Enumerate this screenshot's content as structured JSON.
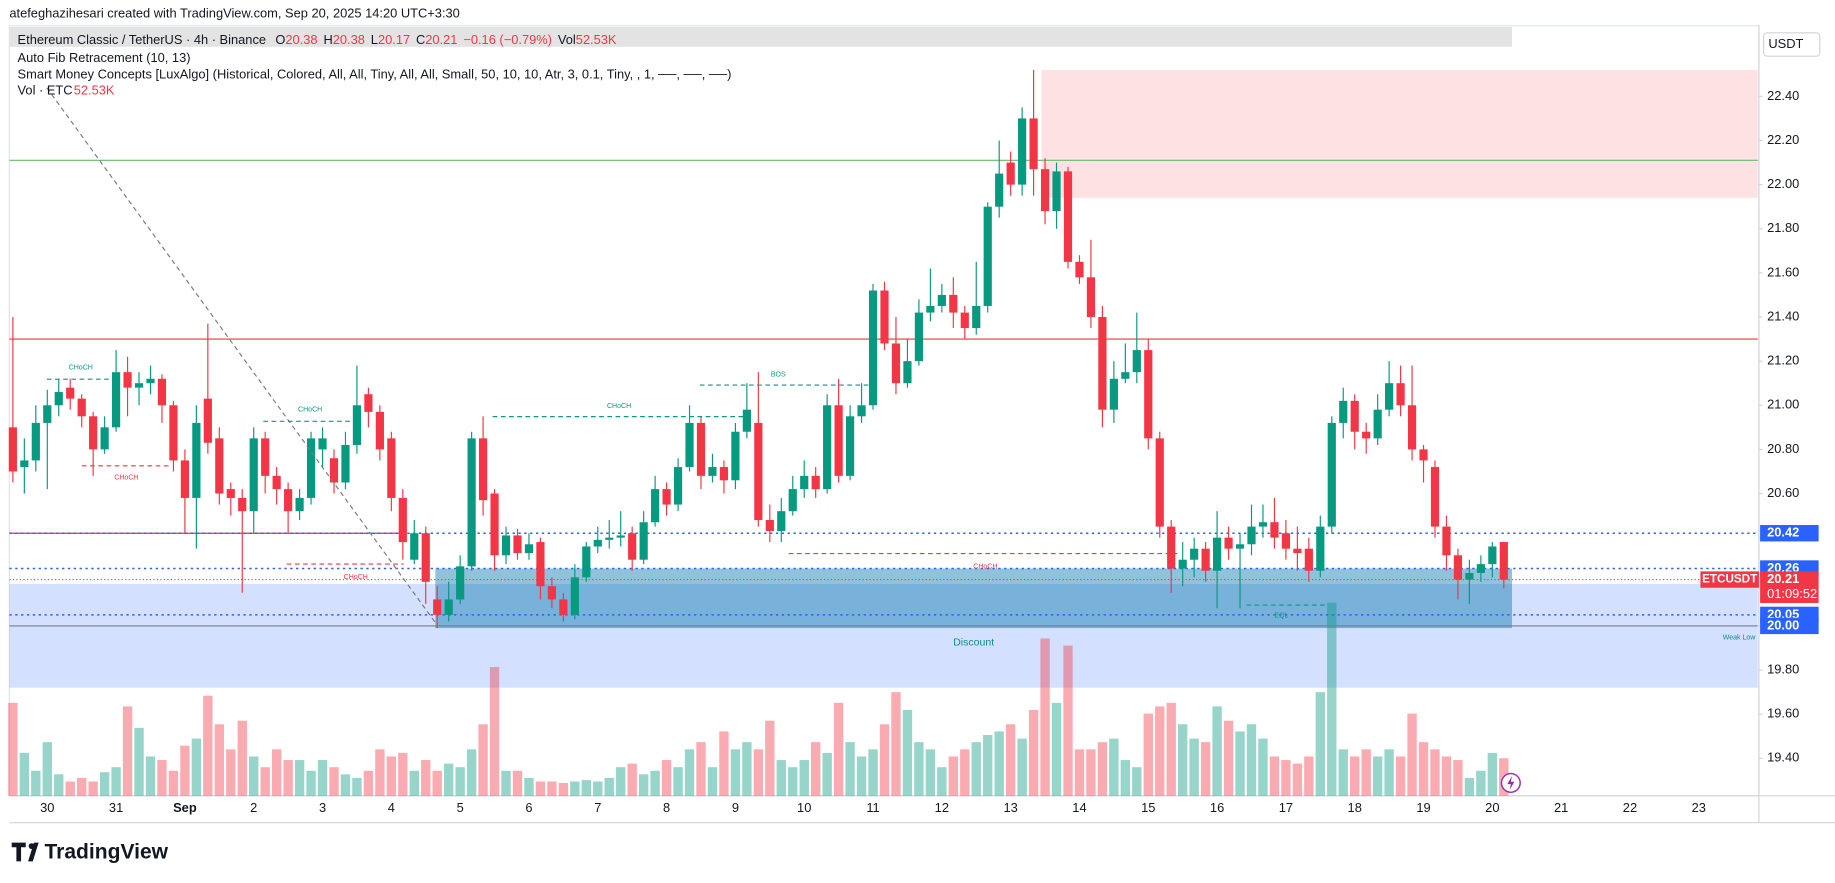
{
  "header": {
    "credit": "atefeghazihesari created with TradingView.com, Sep 20, 2025 14:20 UTC+3:30",
    "currency": "USDT",
    "brand": "TradingView"
  },
  "legend": {
    "symbol": "Ethereum Classic / TetherUS · 4h · Binance",
    "fields": [
      {
        "k": "O",
        "v": 20.38
      },
      {
        "k": "H",
        "v": 20.38
      },
      {
        "k": "L",
        "v": 20.17
      },
      {
        "k": "C",
        "v": 20.21
      }
    ],
    "change": "−0.16 (−0.79%)",
    "vol_key": "Vol",
    "vol": "52.53K",
    "indicators": [
      "Auto Fib Retracement (10, 13)",
      "Smart Money Concepts [LuxAlgo] (Historical, Colored, All, All, Tiny, All, All, Small, 50, 10, 10, Atr, 3, 0.1, Tiny, , 1, ──, ──, ──)"
    ],
    "vol_indicator": "Vol · ETC",
    "vol_indicator_value": "52.53K"
  },
  "chart_data": {
    "type": "candlestick",
    "up_color": "#089981",
    "down_color": "#f23645",
    "ylim": [
      19.23,
      22.72
    ],
    "yticks": [
      {
        "value": 22.4,
        "label": "22.40"
      },
      {
        "value": 22.2,
        "label": "22.20"
      },
      {
        "value": 22,
        "label": "22.00"
      },
      {
        "value": 21.8,
        "label": "21.80"
      },
      {
        "value": 21.6,
        "label": "21.60"
      },
      {
        "value": 21.4,
        "label": "21.40"
      },
      {
        "value": 21.2,
        "label": "21.20"
      },
      {
        "value": 21,
        "label": "21.00"
      },
      {
        "value": 20.8,
        "label": "20.80"
      },
      {
        "value": 20.6,
        "label": "20.60"
      },
      {
        "value": 20.4,
        "label": "20.40"
      },
      {
        "value": 20.2,
        "label": "20.20"
      },
      {
        "value": 20,
        "label": "20.00"
      },
      {
        "value": 19.8,
        "label": "19.80"
      },
      {
        "value": 19.6,
        "label": "19.60"
      },
      {
        "value": 19.4,
        "label": "19.40"
      }
    ],
    "xticks": [
      "30",
      "31",
      "Sep",
      "2",
      "3",
      "4",
      "5",
      "6",
      "7",
      "8",
      "9",
      "10",
      "11",
      "12",
      "13",
      "14",
      "15",
      "16",
      "17",
      "18",
      "19",
      "20",
      "21",
      "22",
      "23"
    ],
    "grid": false,
    "open": [
      20.9,
      20.72,
      20.75,
      20.92,
      21.0,
      21.08,
      21.03,
      20.95,
      20.8,
      20.9,
      21.15,
      21.08,
      21.1,
      21.12,
      21.0,
      20.75,
      20.58,
      21.03,
      20.85,
      20.62,
      20.58,
      20.52,
      20.85,
      20.68,
      20.62,
      20.52,
      20.58,
      20.8,
      20.76,
      20.65,
      20.82,
      21.05,
      20.97,
      20.85,
      20.58,
      20.3,
      20.42,
      20.12,
      20.05,
      20.12,
      20.27,
      20.85,
      20.6,
      20.32,
      20.41,
      20.33,
      20.38,
      20.18,
      20.12,
      20.05,
      20.22,
      20.36,
      20.39,
      20.4,
      20.42,
      20.3,
      20.47,
      20.62,
      20.55,
      20.72,
      20.92,
      20.68,
      20.72,
      20.66,
      20.88,
      20.92,
      20.48,
      20.43,
      20.52,
      20.62,
      20.68,
      20.62,
      21.0,
      20.68,
      20.95,
      21.0,
      21.52,
      21.28,
      21.1,
      21.2,
      21.42,
      21.45,
      21.5,
      21.42,
      21.35,
      21.45,
      21.9,
      22.1,
      22.0,
      22.3,
      22.07,
      21.88,
      22.06,
      21.65,
      21.58,
      21.4,
      20.98,
      21.12,
      21.15,
      21.25,
      20.85,
      20.45,
      20.26,
      20.3,
      20.35,
      20.25,
      20.4,
      20.35,
      20.37,
      20.45,
      20.47,
      20.42,
      20.35,
      20.35,
      20.25,
      20.45,
      20.92,
      21.02,
      20.88,
      20.85,
      20.98,
      21.1,
      21.0,
      20.8,
      20.72,
      20.45,
      20.32,
      20.21,
      20.24,
      20.28,
      20.38
    ],
    "high": [
      21.4,
      20.85,
      21.0,
      21.07,
      21.12,
      21.12,
      21.05,
      20.97,
      20.95,
      21.25,
      21.22,
      21.15,
      21.18,
      21.14,
      21.02,
      20.8,
      21.0,
      21.37,
      20.9,
      20.65,
      20.62,
      20.9,
      20.88,
      20.72,
      20.65,
      20.62,
      20.88,
      20.9,
      20.8,
      20.88,
      21.18,
      21.08,
      21.0,
      20.88,
      20.62,
      20.48,
      20.45,
      20.18,
      20.2,
      20.32,
      20.88,
      20.95,
      20.62,
      20.45,
      20.44,
      20.42,
      20.4,
      20.22,
      20.15,
      20.28,
      20.38,
      20.45,
      20.48,
      20.52,
      20.45,
      20.52,
      20.68,
      20.65,
      20.76,
      21.0,
      20.95,
      20.78,
      20.75,
      20.92,
      21.1,
      21.15,
      20.55,
      20.58,
      20.68,
      20.75,
      20.72,
      21.05,
      21.12,
      21.0,
      21.1,
      21.55,
      21.56,
      21.4,
      21.3,
      21.48,
      21.62,
      21.55,
      21.58,
      21.45,
      21.65,
      21.92,
      22.2,
      22.15,
      22.35,
      22.52,
      22.12,
      22.1,
      22.08,
      21.68,
      21.75,
      21.45,
      21.2,
      21.28,
      21.42,
      21.3,
      20.88,
      20.48,
      20.38,
      20.4,
      20.38,
      20.52,
      20.45,
      20.42,
      20.55,
      20.55,
      20.58,
      20.48,
      20.45,
      20.4,
      20.5,
      20.95,
      21.08,
      21.05,
      20.92,
      21.05,
      21.2,
      21.18,
      21.18,
      20.82,
      20.75,
      20.5,
      20.35,
      20.3,
      20.32,
      20.38,
      20.38
    ],
    "low": [
      20.65,
      20.6,
      20.7,
      20.62,
      20.95,
      20.98,
      20.9,
      20.68,
      20.78,
      20.88,
      20.95,
      21.0,
      21.05,
      20.92,
      20.7,
      20.42,
      20.35,
      20.78,
      20.55,
      20.5,
      20.15,
      20.42,
      20.6,
      20.55,
      20.42,
      20.48,
      20.55,
      20.72,
      20.6,
      20.62,
      20.78,
      20.9,
      20.75,
      20.52,
      20.3,
      20.28,
      20.1,
      19.99,
      20.02,
      20.1,
      20.25,
      20.5,
      20.25,
      20.28,
      20.3,
      20.3,
      20.12,
      20.08,
      20.02,
      20.03,
      20.2,
      20.33,
      20.35,
      20.36,
      20.25,
      20.28,
      20.45,
      20.5,
      20.52,
      20.7,
      20.62,
      20.65,
      20.6,
      20.62,
      20.85,
      20.45,
      20.38,
      20.38,
      20.5,
      20.58,
      20.58,
      20.6,
      20.65,
      20.66,
      20.92,
      20.98,
      21.25,
      21.05,
      21.08,
      21.18,
      21.38,
      21.42,
      21.35,
      21.3,
      21.32,
      21.42,
      21.85,
      21.95,
      21.95,
      21.95,
      21.82,
      21.8,
      21.62,
      21.55,
      21.35,
      20.9,
      20.92,
      21.1,
      21.1,
      20.8,
      20.4,
      20.15,
      20.18,
      20.22,
      20.2,
      20.08,
      20.3,
      20.08,
      20.32,
      20.4,
      20.35,
      20.3,
      20.25,
      20.2,
      20.22,
      20.42,
      20.85,
      20.8,
      20.78,
      20.82,
      20.95,
      20.95,
      20.75,
      20.65,
      20.4,
      20.25,
      20.12,
      20.1,
      20.2,
      20.22,
      20.17
    ],
    "close": [
      20.7,
      20.75,
      20.92,
      21.0,
      21.06,
      21.03,
      20.95,
      20.8,
      20.9,
      21.15,
      21.08,
      21.1,
      21.12,
      21.0,
      20.75,
      20.58,
      20.92,
      20.83,
      20.6,
      20.58,
      20.52,
      20.85,
      20.68,
      20.62,
      20.52,
      20.58,
      20.85,
      20.85,
      20.65,
      20.82,
      21.0,
      20.97,
      20.8,
      20.58,
      20.38,
      20.42,
      20.2,
      20.05,
      20.12,
      20.27,
      20.85,
      20.57,
      20.32,
      20.41,
      20.33,
      20.37,
      20.18,
      20.12,
      20.05,
      20.22,
      20.36,
      20.39,
      20.4,
      20.41,
      20.3,
      20.47,
      20.62,
      20.55,
      20.72,
      20.92,
      20.68,
      20.72,
      20.66,
      20.88,
      20.98,
      20.48,
      20.43,
      20.52,
      20.62,
      20.68,
      20.62,
      21.0,
      20.68,
      20.95,
      21.0,
      21.52,
      21.28,
      21.1,
      21.2,
      21.42,
      21.45,
      21.5,
      21.42,
      21.35,
      21.45,
      21.9,
      22.05,
      22.0,
      22.3,
      22.07,
      21.88,
      22.06,
      21.65,
      21.58,
      21.4,
      20.98,
      21.12,
      21.15,
      21.25,
      20.85,
      20.45,
      20.26,
      20.3,
      20.35,
      20.25,
      20.4,
      20.35,
      20.37,
      20.45,
      20.47,
      20.4,
      20.35,
      20.33,
      20.25,
      20.45,
      20.92,
      21.02,
      20.88,
      20.85,
      20.98,
      21.1,
      21.0,
      20.8,
      20.75,
      20.45,
      20.32,
      20.21,
      20.24,
      20.28,
      20.36,
      20.21
    ],
    "volume": [
      130000,
      60000,
      35000,
      75000,
      30000,
      20000,
      25000,
      20000,
      33000,
      40000,
      125000,
      95000,
      55000,
      50000,
      35000,
      70000,
      80000,
      140000,
      100000,
      65000,
      105000,
      55000,
      40000,
      65000,
      50000,
      50000,
      35000,
      50000,
      40000,
      30000,
      25000,
      35000,
      65000,
      55000,
      60000,
      35000,
      50000,
      35000,
      45000,
      40000,
      65000,
      100000,
      180000,
      35000,
      35000,
      25000,
      20000,
      20000,
      18000,
      20000,
      22000,
      20000,
      25000,
      40000,
      45000,
      30000,
      35000,
      50000,
      40000,
      65000,
      75000,
      40000,
      90000,
      65000,
      75000,
      65000,
      105000,
      50000,
      40000,
      50000,
      75000,
      60000,
      130000,
      75000,
      55000,
      65000,
      100000,
      145000,
      120000,
      75000,
      65000,
      40000,
      55000,
      65000,
      75000,
      85000,
      90000,
      100000,
      80000,
      120000,
      220000,
      130000,
      210000,
      65000,
      65000,
      75000,
      80000,
      50000,
      40000,
      115000,
      125000,
      130000,
      100000,
      80000,
      75000,
      125000,
      105000,
      90000,
      100000,
      80000,
      55000,
      50000,
      45000,
      55000,
      145000,
      270000,
      65000,
      55000,
      65000,
      55000,
      65000,
      55000,
      115000,
      75000,
      65000,
      55000,
      50000,
      25000,
      35000,
      60000,
      52530
    ],
    "levels": [
      {
        "value": 22.11,
        "color": "#66bb6a"
      },
      {
        "value": 21.3,
        "color": "#e53935"
      },
      {
        "value": 20.42,
        "color": "#e53935"
      },
      {
        "value": 20.42,
        "color": "#2962ff",
        "dotted": true
      },
      {
        "value": 20.26,
        "color": "#2962ff",
        "dotted": true
      },
      {
        "value": 20.05,
        "color": "#2962ff",
        "dotted": true
      },
      {
        "value": 20.0,
        "color": "#787b86"
      }
    ],
    "zones": [
      {
        "top": 22.52,
        "bottom": 21.94,
        "color": "rgba(242,54,69,0.15)"
      },
      {
        "top": 20.19,
        "bottom": 19.72,
        "color": "rgba(41,98,255,0.2)"
      },
      {
        "top": 20.26,
        "bottom": 19.99,
        "color": "rgba(8,120,170,0.45)"
      }
    ],
    "annotations": [
      "CHoCH",
      "CHoCH",
      "CHoCH",
      "CHoCH",
      "CHoCH",
      "BOS",
      "CHoCH",
      "EQL",
      "Discount",
      "Weak Low"
    ],
    "price_tags": [
      20.42,
      20.26,
      20.05,
      {
        "value": 20,
        "label": "20.00"
      }
    ],
    "last_price": {
      "symbol": "ETCUSDT",
      "value": 20.21,
      "countdown": "01:09:52"
    }
  }
}
